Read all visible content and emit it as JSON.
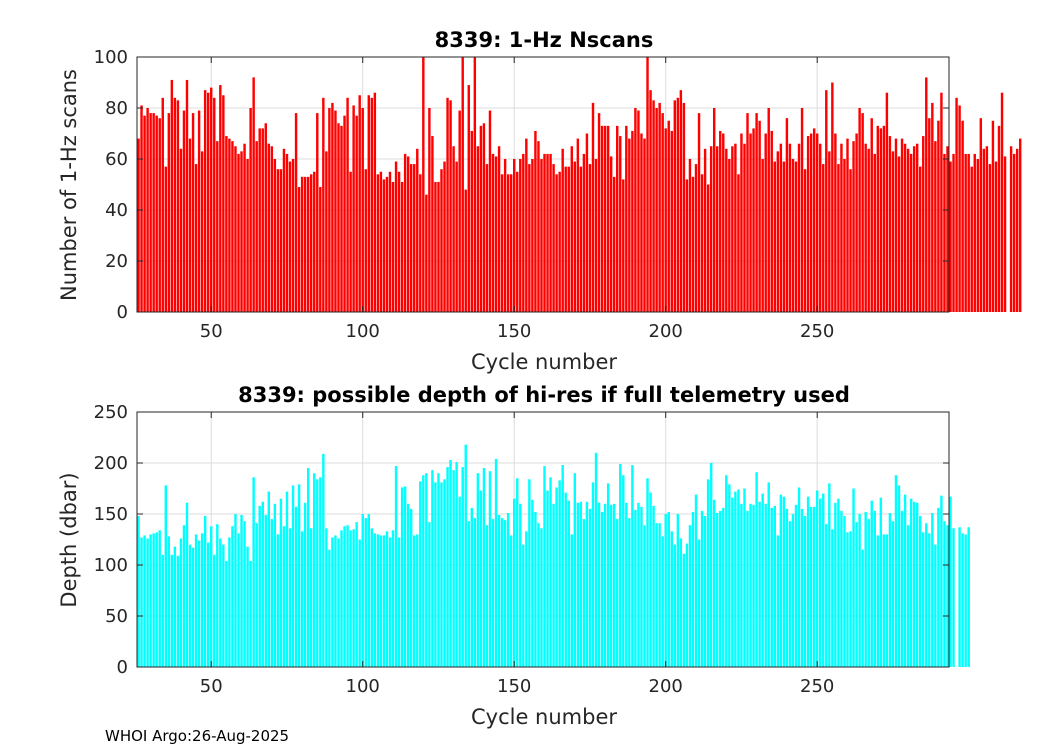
{
  "footer": "WHOI Argo:26-Aug-2025",
  "colors": {
    "top_bars": "#ff0000",
    "bottom_bars": "#00ffff",
    "grid": "#dcdcdc",
    "axis": "#262626"
  },
  "chart_data": [
    {
      "type": "bar",
      "title": "8339: 1-Hz Nscans",
      "xlabel": "Cycle number",
      "ylabel": "Number of 1-Hz scans",
      "xlim": [
        25.5,
        293.5
      ],
      "ylim": [
        0,
        100
      ],
      "xticks": [
        50,
        100,
        150,
        200,
        250
      ],
      "yticks": [
        0,
        20,
        40,
        60,
        80,
        100
      ],
      "grid": true,
      "color": "#ff0000",
      "x_start": 26,
      "values": [
        68,
        81,
        77,
        80,
        78,
        78,
        77,
        76,
        84,
        57,
        78,
        91,
        84,
        83,
        64,
        79,
        91,
        68,
        78,
        58,
        79,
        63,
        87,
        86,
        88,
        84,
        67,
        89,
        85,
        69,
        68,
        67,
        65,
        62,
        63,
        66,
        60,
        80,
        92,
        67,
        72,
        72,
        74,
        66,
        65,
        60,
        56,
        56,
        64,
        62,
        59,
        60,
        78,
        49,
        53,
        53,
        53,
        54,
        55,
        78,
        49,
        84,
        63,
        80,
        82,
        79,
        74,
        73,
        77,
        84,
        55,
        81,
        77,
        85,
        80,
        56,
        85,
        84,
        86,
        54,
        55,
        52,
        53,
        55,
        51,
        59,
        55,
        51,
        62,
        61,
        58,
        58,
        64,
        54,
        100,
        46,
        80,
        69,
        51,
        51,
        56,
        59,
        84,
        83,
        65,
        59,
        79,
        100,
        48,
        89,
        71,
        102,
        65,
        73,
        74,
        58,
        79,
        62,
        61,
        65,
        54,
        60,
        54,
        54,
        60,
        55,
        60,
        62,
        68,
        58,
        60,
        71,
        67,
        60,
        62,
        62,
        62,
        58,
        54,
        55,
        64,
        57,
        57,
        65,
        59,
        68,
        57,
        62,
        70,
        58,
        82,
        60,
        78,
        73,
        73,
        73,
        61,
        53,
        73,
        69,
        52,
        73,
        68,
        71,
        80,
        79,
        70,
        68,
        100,
        87,
        83,
        80,
        82,
        78,
        72,
        75,
        71,
        83,
        84,
        87,
        82,
        52,
        60,
        53,
        58,
        78,
        54,
        64,
        50,
        65,
        80,
        65,
        71,
        70,
        64,
        60,
        65,
        66,
        54,
        70,
        66,
        78,
        70,
        72,
        78,
        75,
        60,
        70,
        80,
        71,
        59,
        63,
        66,
        59,
        76,
        66,
        60,
        59,
        66,
        80,
        56,
        69,
        70,
        72,
        70,
        66,
        58,
        87,
        63,
        90,
        70,
        58,
        66,
        60,
        68,
        56,
        67,
        70,
        80,
        78,
        66,
        64,
        76,
        62,
        73,
        72,
        73,
        86,
        69,
        63,
        68,
        61,
        68,
        66,
        64,
        62,
        65,
        66,
        57,
        69,
        92,
        76,
        82,
        67,
        75,
        86,
        62,
        65,
        59,
        62,
        84,
        81,
        75,
        62,
        62,
        57,
        62,
        60,
        76,
        64,
        65,
        58,
        75,
        59,
        73,
        86,
        61,
        0,
        65,
        62,
        64,
        68
      ]
    },
    {
      "type": "bar",
      "title": "8339: possible depth of hi-res if full telemetry used",
      "xlabel": "Cycle number",
      "ylabel": "Depth (dbar)",
      "xlim": [
        25.5,
        293.5
      ],
      "ylim": [
        0,
        250
      ],
      "xticks": [
        50,
        100,
        150,
        200,
        250
      ],
      "yticks": [
        0,
        50,
        100,
        150,
        200,
        250
      ],
      "grid": true,
      "color": "#00ffff",
      "x_start": 26,
      "values": [
        148,
        127,
        129,
        126,
        130,
        131,
        132,
        134,
        110,
        178,
        128,
        110,
        118,
        109,
        126,
        139,
        161,
        120,
        117,
        130,
        124,
        131,
        148,
        122,
        138,
        110,
        140,
        126,
        120,
        104,
        127,
        138,
        150,
        131,
        149,
        143,
        118,
        104,
        186,
        141,
        158,
        162,
        149,
        172,
        145,
        160,
        130,
        165,
        138,
        172,
        136,
        178,
        157,
        179,
        133,
        161,
        195,
        136,
        190,
        184,
        186,
        209,
        136,
        115,
        127,
        129,
        126,
        134,
        138,
        139,
        134,
        135,
        142,
        125,
        150,
        146,
        150,
        136,
        131,
        130,
        129,
        129,
        133,
        127,
        134,
        197,
        127,
        176,
        177,
        160,
        155,
        129,
        130,
        182,
        188,
        190,
        142,
        193,
        181,
        190,
        181,
        184,
        196,
        203,
        193,
        201,
        167,
        196,
        218,
        143,
        156,
        146,
        190,
        173,
        195,
        139,
        192,
        145,
        204,
        149,
        146,
        144,
        151,
        129,
        165,
        185,
        160,
        120,
        133,
        184,
        164,
        152,
        141,
        136,
        197,
        173,
        186,
        160,
        176,
        183,
        198,
        171,
        163,
        130,
        190,
        161,
        162,
        145,
        162,
        155,
        181,
        210,
        161,
        152,
        160,
        180,
        159,
        160,
        145,
        199,
        188,
        161,
        146,
        198,
        154,
        161,
        157,
        139,
        185,
        171,
        158,
        141,
        141,
        128,
        150,
        152,
        133,
        120,
        150,
        126,
        111,
        121,
        139,
        152,
        169,
        125,
        153,
        148,
        184,
        200,
        164,
        151,
        153,
        156,
        188,
        179,
        166,
        172,
        174,
        160,
        175,
        153,
        160,
        159,
        191,
        162,
        170,
        160,
        181,
        156,
        158,
        129,
        169,
        167,
        155,
        143,
        150,
        159,
        176,
        155,
        148,
        167,
        157,
        157,
        173,
        165,
        170,
        140,
        180,
        135,
        161,
        165,
        153,
        148,
        132,
        133,
        175,
        142,
        150,
        115,
        152,
        145,
        163,
        153,
        129,
        166,
        130,
        130,
        151,
        143,
        188,
        178,
        153,
        169,
        139,
        165,
        162,
        161,
        148,
        132,
        141,
        131,
        151,
        120,
        156,
        168,
        143,
        139,
        167,
        136,
        0,
        137,
        131,
        130,
        137
      ]
    }
  ]
}
